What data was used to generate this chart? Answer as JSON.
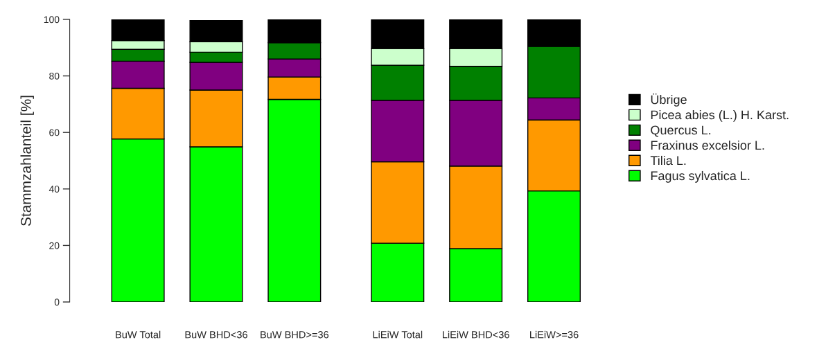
{
  "chart_data": {
    "type": "bar",
    "stacked": true,
    "ylabel": "Stammzahlanteil [%]",
    "categories": [
      "BuW Total",
      "BuW BHD<36",
      "BuW BHD>=36",
      "LiEiW Total",
      "LiEiW BHD<36",
      "LiEiW>=36"
    ],
    "series": [
      {
        "name": "Fagus sylvatica L.",
        "color": "#00ff00",
        "values": [
          57.7,
          54.9,
          71.7,
          20.8,
          18.9,
          39.3
        ]
      },
      {
        "name": "Tilia L.",
        "color": "#ff9900",
        "values": [
          17.9,
          20.1,
          7.9,
          28.8,
          29.2,
          25.1
        ]
      },
      {
        "name": "Fraxinus excelsior L.",
        "color": "#800080",
        "values": [
          9.6,
          9.8,
          6.4,
          21.8,
          23.3,
          7.8
        ]
      },
      {
        "name": "Quercus L.",
        "color": "#008000",
        "values": [
          4.2,
          3.6,
          5.8,
          12.4,
          12.0,
          18.3
        ]
      },
      {
        "name": "Picea abies (L.) H. Karst.",
        "color": "#ccffcc",
        "values": [
          3.1,
          3.7,
          0,
          5.9,
          6.3,
          0
        ]
      },
      {
        "name": "Übrige",
        "color": "#000000",
        "values": [
          7.5,
          7.5,
          8.2,
          10.3,
          10.3,
          9.5
        ]
      }
    ],
    "ylim": [
      0,
      100
    ],
    "yticks": [
      0,
      20,
      40,
      60,
      80,
      100
    ],
    "grid": false,
    "legend": "right"
  }
}
